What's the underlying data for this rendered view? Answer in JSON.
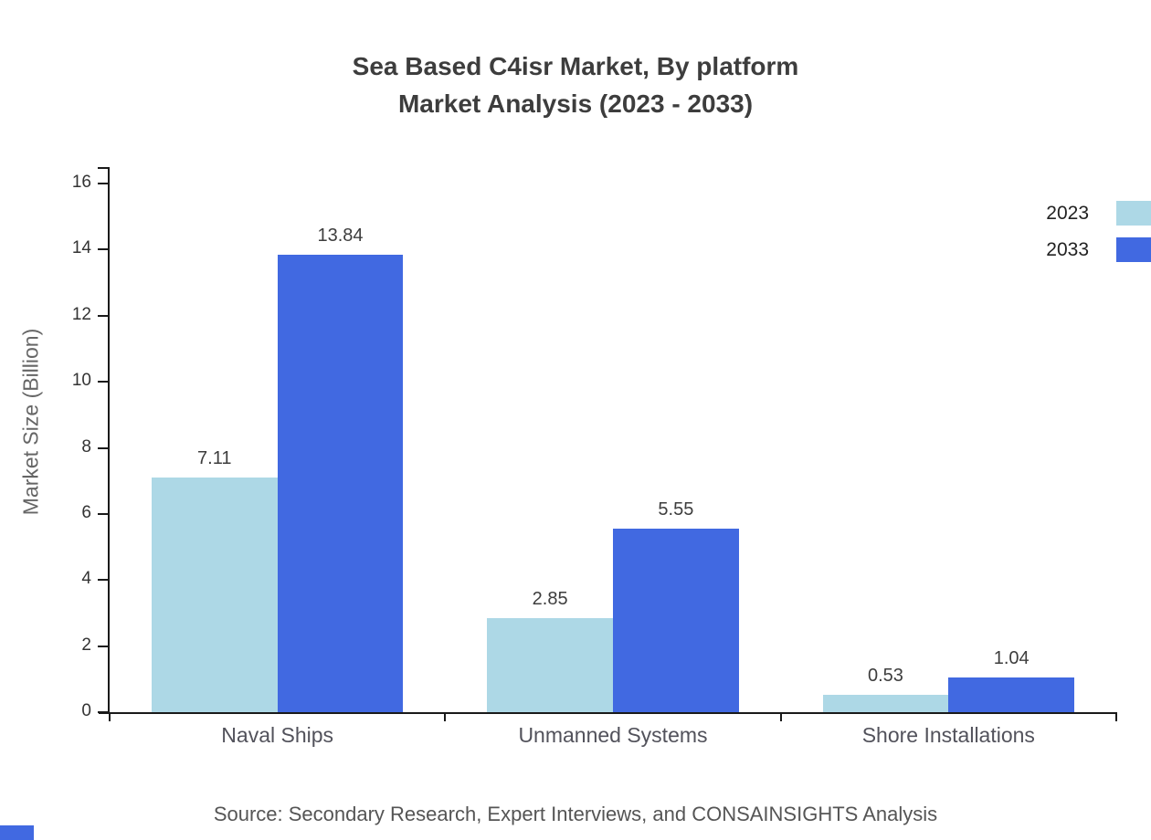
{
  "title": {
    "line1": "Sea Based C4isr Market, By platform",
    "line2": "Market Analysis (2023 - 2033)"
  },
  "ylabel": "Market Size (Billion)",
  "source": "Source: Secondary Research, Expert Interviews, and CONSAINSIGHTS Analysis",
  "legend": [
    {
      "label": "2023",
      "color": "#ADD8E6"
    },
    {
      "label": "2033",
      "color": "#4169E1"
    }
  ],
  "accent_color": "#4169E1",
  "chart_data": {
    "type": "bar",
    "title": "Sea Based C4isr Market, By platform Market Analysis (2023 - 2033)",
    "categories": [
      "Naval Ships",
      "Unmanned Systems",
      "Shore Installations"
    ],
    "series": [
      {
        "name": "2023",
        "color": "#ADD8E6",
        "values": [
          7.11,
          2.85,
          0.53
        ]
      },
      {
        "name": "2033",
        "color": "#4169E1",
        "values": [
          13.84,
          5.55,
          1.04
        ]
      }
    ],
    "xlabel": "",
    "ylabel": "Market Size (Billion)",
    "ylim": [
      0,
      16
    ],
    "yticks": [
      0,
      2,
      4,
      6,
      8,
      10,
      12,
      14,
      16
    ],
    "grid": false,
    "legend_position": "top-right",
    "value_labels": true
  }
}
